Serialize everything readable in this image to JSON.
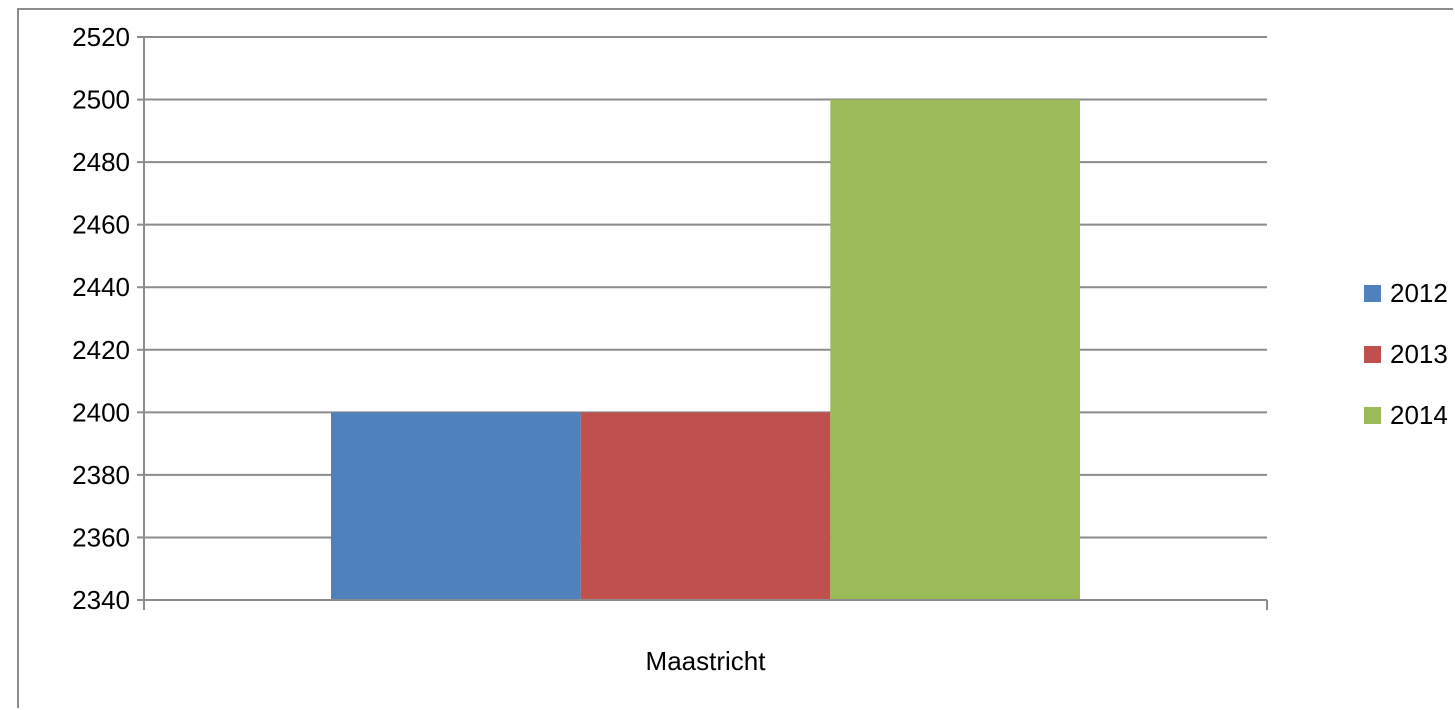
{
  "chart_data": {
    "type": "bar",
    "title": "",
    "xlabel": "",
    "ylabel": "",
    "categories": [
      "Maastricht"
    ],
    "series": [
      {
        "name": "2012",
        "values": [
          2400
        ],
        "color": "#4f81bd"
      },
      {
        "name": "2013",
        "values": [
          2400
        ],
        "color": "#c0504d"
      },
      {
        "name": "2014",
        "values": [
          2500
        ],
        "color": "#9bbb59"
      }
    ],
    "ylim": [
      2340,
      2520
    ],
    "yticks": [
      2340,
      2360,
      2380,
      2400,
      2420,
      2440,
      2460,
      2480,
      2500,
      2520
    ],
    "grid": true,
    "legend": "right",
    "gridline_color": "#8c8c8c"
  }
}
